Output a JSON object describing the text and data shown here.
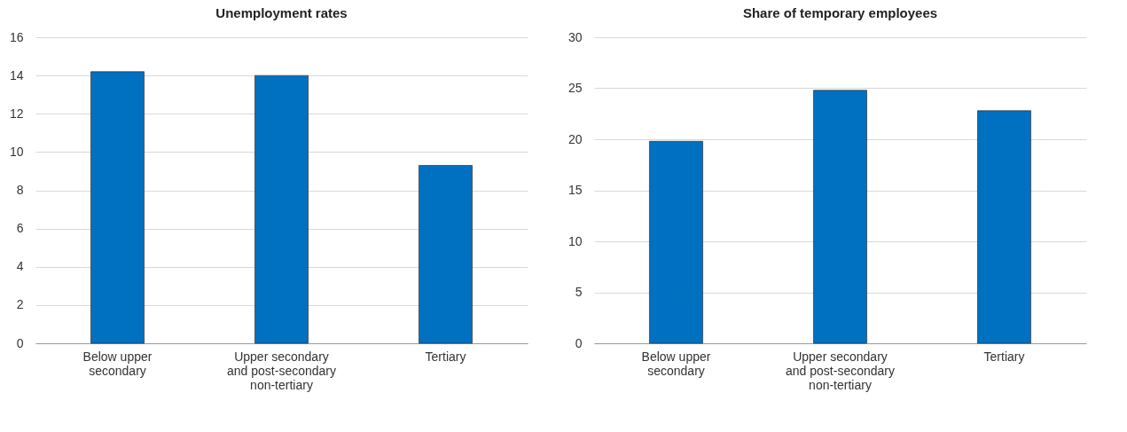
{
  "chart_data": [
    {
      "type": "bar",
      "title": "Unemployment rates",
      "categories": [
        "Below upper secondary",
        "Upper secondary and post-secondary non-tertiary",
        "Tertiary"
      ],
      "values": [
        14.2,
        14.0,
        9.3
      ],
      "color": "#0070c0",
      "ylim": [
        0,
        16
      ],
      "yticks": [
        0,
        2,
        4,
        6,
        8,
        10,
        12,
        14,
        16
      ],
      "grid": "y"
    },
    {
      "type": "bar",
      "title": "Share of temporary employees",
      "categories": [
        "Below upper secondary",
        "Upper secondary and post-secondary non-tertiary",
        "Tertiary"
      ],
      "values": [
        19.8,
        24.8,
        22.8
      ],
      "color": "#0070c0",
      "ylim": [
        0,
        30
      ],
      "yticks": [
        0,
        5,
        10,
        15,
        20,
        25,
        30
      ],
      "grid": "y"
    }
  ]
}
